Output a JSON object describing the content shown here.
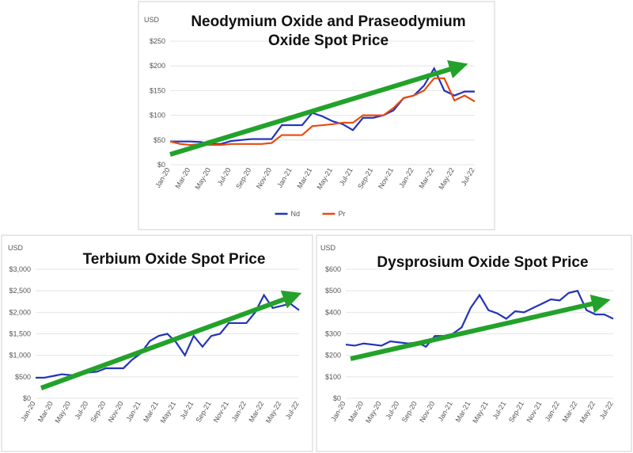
{
  "chart_data": [
    {
      "type": "line",
      "title": "Neodymium Oxide and Praseodymium Oxide Spot Price",
      "y_label": "USD",
      "categories": [
        "Jan-20",
        null,
        "Mar-20",
        null,
        "May-20",
        null,
        "Jul-20",
        null,
        "Sep-20",
        null,
        "Nov-20",
        null,
        "Jan-21",
        null,
        "Mar-21",
        null,
        "May-21",
        null,
        "Jul-21",
        null,
        "Sep-21",
        null,
        "Nov-21",
        null,
        "Jan-22",
        null,
        "Mar-22",
        null,
        "May-22",
        null,
        "Jul-22"
      ],
      "series": [
        {
          "name": "Nd",
          "color": "#2233bb",
          "values": [
            47,
            47,
            47,
            46,
            42,
            42,
            48,
            50,
            52,
            52,
            52,
            80,
            80,
            80,
            105,
            98,
            88,
            82,
            70,
            95,
            95,
            100,
            110,
            135,
            140,
            160,
            195,
            150,
            140,
            148,
            148
          ]
        },
        {
          "name": "Pr",
          "color": "#e84a10",
          "values": [
            47,
            42,
            40,
            42,
            40,
            40,
            42,
            42,
            42,
            42,
            44,
            60,
            60,
            60,
            78,
            80,
            82,
            85,
            85,
            100,
            100,
            100,
            115,
            135,
            140,
            150,
            175,
            175,
            130,
            140,
            128
          ]
        }
      ],
      "ylim": [
        0,
        250
      ],
      "yticks": [
        {
          "value": 0,
          "label": "$0"
        },
        {
          "value": 50,
          "label": "$50"
        },
        {
          "value": 100,
          "label": "$100"
        },
        {
          "value": 150,
          "label": "$150"
        },
        {
          "value": 200,
          "label": "$200"
        },
        {
          "value": 250,
          "label": "$250"
        }
      ],
      "legend": "bottom"
    },
    {
      "type": "line",
      "title": "Terbium Oxide Spot Price",
      "y_label": "USD",
      "categories": [
        "Jan-20",
        null,
        "Mar-20",
        null,
        "May-20",
        null,
        "Jul-20",
        null,
        "Sep-20",
        null,
        "Nov-20",
        null,
        "Jan-21",
        null,
        "Mar-21",
        null,
        "May-21",
        null,
        "Jul-21",
        null,
        "Sep-21",
        null,
        "Nov-21",
        null,
        "Jan-22",
        null,
        "Mar-22",
        null,
        "May-22",
        null,
        "Jul-22"
      ],
      "color": "#2233bb",
      "values": [
        480,
        480,
        520,
        560,
        540,
        540,
        600,
        620,
        700,
        700,
        700,
        900,
        1050,
        1330,
        1450,
        1500,
        1300,
        1000,
        1450,
        1200,
        1450,
        1500,
        1750,
        1750,
        1750,
        2000,
        2400,
        2100,
        2150,
        2200,
        2050
      ],
      "ylim": [
        0,
        3000
      ],
      "yticks": [
        {
          "value": 0,
          "label": "$0"
        },
        {
          "value": 500,
          "label": "$500"
        },
        {
          "value": 1000,
          "label": "$1,000"
        },
        {
          "value": 1500,
          "label": "$1,500"
        },
        {
          "value": 2000,
          "label": "$2,000"
        },
        {
          "value": 2500,
          "label": "$2,500"
        },
        {
          "value": 3000,
          "label": "$3,000"
        }
      ]
    },
    {
      "type": "line",
      "title": "Dysprosium Oxide Spot Price",
      "y_label": "USD",
      "categories": [
        "Jan-20",
        null,
        "Mar-20",
        null,
        "May-20",
        null,
        "Jul-20",
        null,
        "Sep-20",
        null,
        "Nov-20",
        null,
        "Jan-21",
        null,
        "Mar-21",
        null,
        "May-21",
        null,
        "Jul-21",
        null,
        "Sep-21",
        null,
        "Nov-21",
        null,
        "Jan-22",
        null,
        "Mar-22",
        null,
        "May-22",
        null,
        "Jul-22"
      ],
      "color": "#2233bb",
      "values": [
        250,
        245,
        255,
        250,
        245,
        265,
        260,
        255,
        260,
        240,
        290,
        290,
        300,
        330,
        420,
        480,
        410,
        395,
        370,
        405,
        400,
        420,
        440,
        460,
        455,
        490,
        500,
        410,
        390,
        390,
        370
      ],
      "ylim": [
        0,
        600
      ],
      "yticks": [
        {
          "value": 0,
          "label": "$0"
        },
        {
          "value": 100,
          "label": "$100"
        },
        {
          "value": 200,
          "label": "$200"
        },
        {
          "value": 300,
          "label": "$300"
        },
        {
          "value": 400,
          "label": "$400"
        },
        {
          "value": 500,
          "label": "$500"
        },
        {
          "value": 600,
          "label": "$600"
        }
      ]
    }
  ]
}
